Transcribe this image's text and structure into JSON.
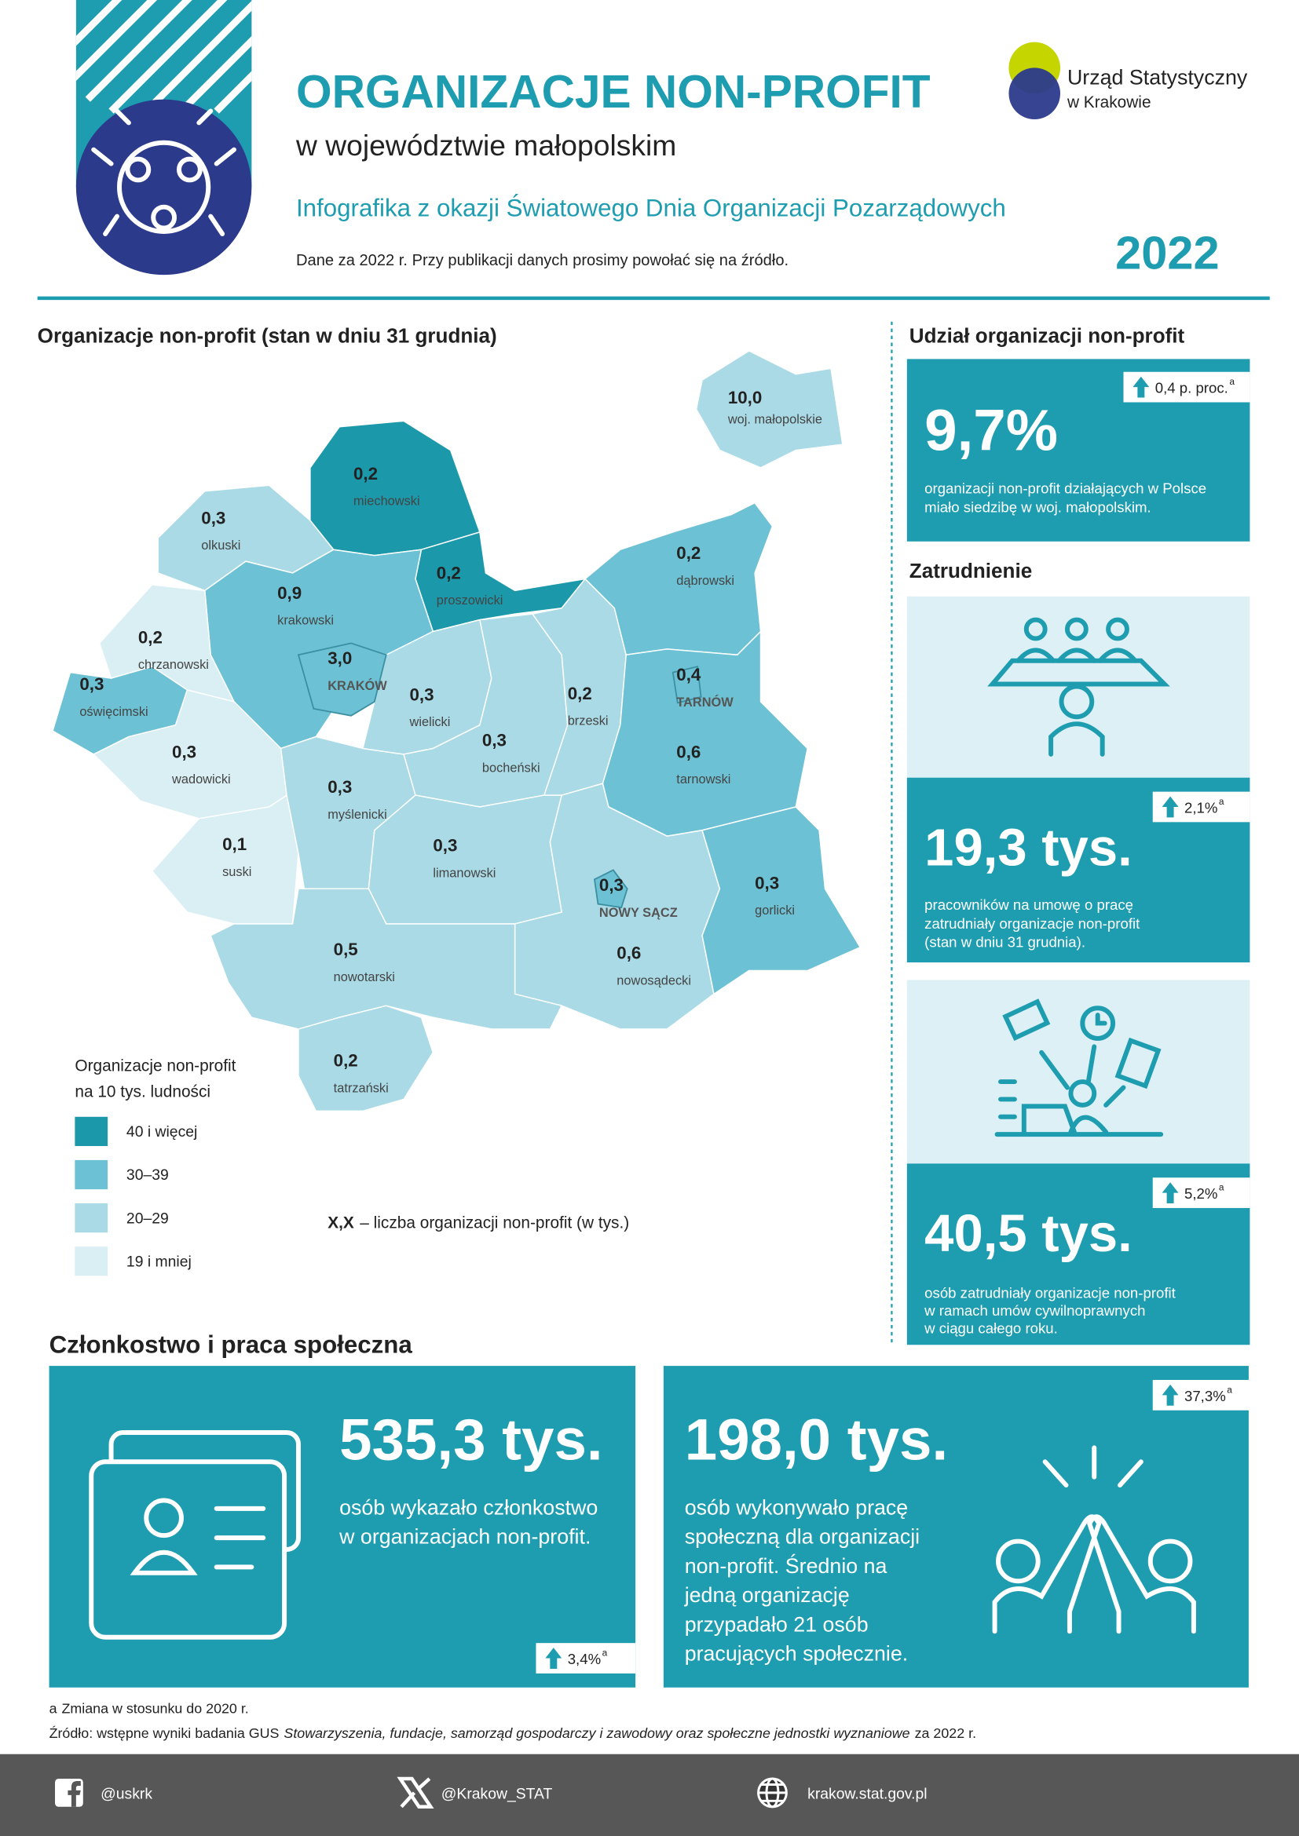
{
  "header": {
    "title": "ORGANIZACJE NON-PROFIT",
    "subtitle": "w województwie małopolskim",
    "tagline": "Infografika z okazji Światowego Dnia Organizacji Pozarządowych",
    "note": "Dane za 2022 r. Przy publikacji danych prosimy powołać się na źródło.",
    "year": "2022",
    "institution": [
      "Urząd Statystyczny",
      "w Krakowie"
    ]
  },
  "map": {
    "title": "Organizacje non-profit (stan w dniu 31 grudnia)",
    "voivodeship": {
      "value": "10,0",
      "name": "woj. małopolskie"
    },
    "regions": [
      {
        "value": "0,2",
        "name": "miechowski"
      },
      {
        "value": "0,2",
        "name": "proszowicki"
      },
      {
        "value": "0,3",
        "name": "olkuski"
      },
      {
        "value": "0,9",
        "name": "krakowski"
      },
      {
        "value": "0,2",
        "name": "chrzanowski"
      },
      {
        "value": "0,3",
        "name": "oświęcimski"
      },
      {
        "value": "0,3",
        "name": "wadowicki"
      },
      {
        "value": "0,1",
        "name": "suski"
      },
      {
        "value": "0,3",
        "name": "myślenicki"
      },
      {
        "value": "0,3",
        "name": "wielicki"
      },
      {
        "value": "0,3",
        "name": "bocheński"
      },
      {
        "value": "0,2",
        "name": "brzeski"
      },
      {
        "value": "0,2",
        "name": "dąbrowski"
      },
      {
        "value": "0,6",
        "name": "tarnowski"
      },
      {
        "value": "0,3",
        "name": "limanowski"
      },
      {
        "value": "0,6",
        "name": "nowosądecki"
      },
      {
        "value": "0,3",
        "name": "gorlicki"
      },
      {
        "value": "0,5",
        "name": "nowotarski"
      },
      {
        "value": "0,2",
        "name": "tatrzański"
      },
      {
        "value": "3,0",
        "name": "KRAKÓW"
      },
      {
        "value": "0,4",
        "name": "TARNÓW"
      },
      {
        "value": "0,3",
        "name": "NOWY SĄCZ"
      }
    ],
    "legend": {
      "title": [
        "Organizacje non-profit",
        "na 10 tys. ludności"
      ],
      "classes": [
        {
          "label": "40 i więcej",
          "color": "#1b98aa"
        },
        {
          "label": "30–39",
          "color": "#6cc2d4"
        },
        {
          "label": "20–29",
          "color": "#a9dae5"
        },
        {
          "label": "19 i mniej",
          "color": "#daeff4"
        }
      ]
    },
    "key": {
      "symbol": "X,X",
      "text": "– liczba organizacji non-profit (w tys.)"
    }
  },
  "share": {
    "title": "Udział organizacji non-profit",
    "value": "9,7%",
    "change": "0,4 p. proc.",
    "mark": "a",
    "description": [
      "organizacji non-profit działających w Polsce",
      "miało siedzibę w woj. małopolskim."
    ]
  },
  "employment": {
    "title": "Zatrudnienie",
    "contracts": {
      "value": "19,3 tys.",
      "change": "2,1%",
      "mark": "a",
      "description": [
        "pracowników na umowę o pracę",
        "zatrudniały organizacje non-profit",
        "(stan w dniu 31 grudnia)."
      ]
    },
    "civil": {
      "value": "40,5 tys.",
      "change": "5,2%",
      "mark": "a",
      "description": [
        "osób zatrudniały organizacje non-profit",
        "w ramach umów cywilnoprawnych",
        "w ciągu całego roku."
      ]
    }
  },
  "membership": {
    "title": "Członkostwo i praca społeczna",
    "members": {
      "value": "535,3 tys.",
      "change": "3,4%",
      "mark": "a",
      "description": [
        "osób wykazało członkostwo",
        "w organizacjach non-profit."
      ]
    },
    "volunteers": {
      "value": "198,0 tys.",
      "change": "37,3%",
      "mark": "a",
      "description": [
        "osób wykonywało pracę",
        "społeczną dla organizacji",
        "non-profit. Średnio na",
        "jedną organizację",
        "przypadało 21 osób",
        "pracujących społecznie."
      ]
    }
  },
  "footnote": {
    "mark": "a",
    "text": "Zmiana w stosunku do 2020 r."
  },
  "source": {
    "prefix": "Źródło: wstępne wyniki badania GUS",
    "title": "Stowarzyszenia, fundacje, samorząd gospodarczy i zawodowy oraz społeczne jednostki wyznaniowe",
    "suffix": "za 2022 r."
  },
  "footer": {
    "facebook": "@uskrk",
    "x": "@Krakow_STAT",
    "website": "krakow.stat.gov.pl"
  }
}
